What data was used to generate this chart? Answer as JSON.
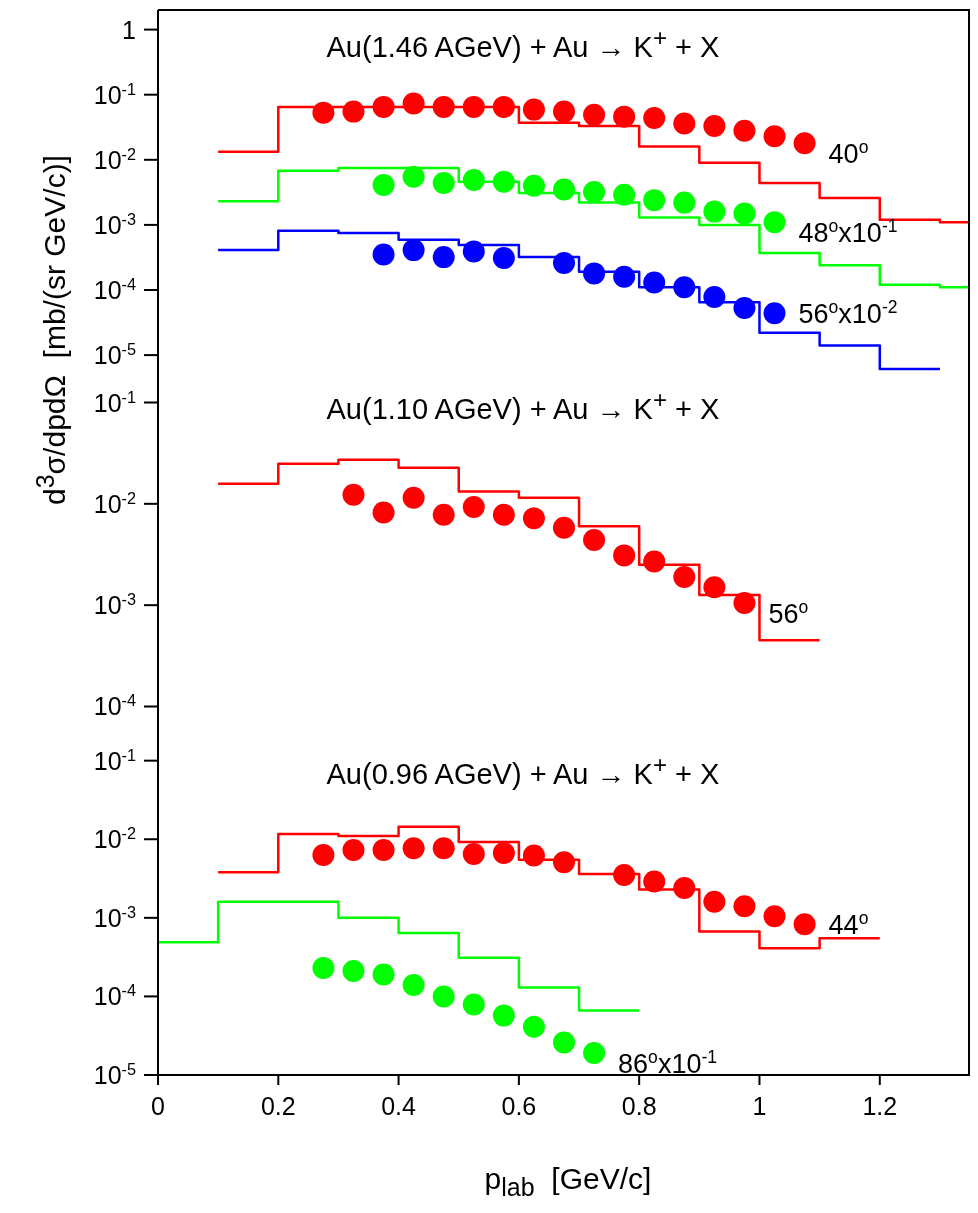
{
  "chart_data": [
    {
      "type": "scatter",
      "title": "Au(1.46 AGeV) + Au → K$^{+}$ + X",
      "ylabel": "d$^{3}$σ/dpdΩ  [mb/(sr GeV/c)]",
      "xlim": [
        0,
        1.35
      ],
      "xticks": [
        0,
        0.2,
        0.4,
        0.6,
        0.8,
        1,
        1.2
      ],
      "ylim": [
        5.5e-06,
        2
      ],
      "yticks": [
        1,
        {
          "value": 0.1,
          "label": "10$^{-1}$"
        },
        {
          "value": 0.01,
          "label": "10$^{-2}$"
        },
        {
          "value": 0.001,
          "label": "10$^{-3}$"
        },
        {
          "value": 0.0001,
          "label": "10$^{-4}$"
        },
        {
          "value": 1e-05,
          "label": "10$^{-5}$"
        }
      ],
      "log": "y",
      "tick_labels": "y",
      "series": [
        {
          "type": "step",
          "color": "#ff0000",
          "x": [
            0.1,
            0.2,
            0.3,
            0.4,
            0.5,
            0.6,
            0.7,
            0.8,
            0.9,
            1.0,
            1.1,
            1.2,
            1.3,
            1.35
          ],
          "values": [
            0.0133,
            0.065,
            0.065,
            0.065,
            0.065,
            0.037,
            0.033,
            0.016,
            0.009,
            0.0044,
            0.0026,
            0.0012,
            0.0011,
            0.0011
          ]
        },
        {
          "type": "step",
          "color": "#00ff00",
          "x": [
            0.1,
            0.2,
            0.3,
            0.4,
            0.5,
            0.6,
            0.7,
            0.8,
            0.9,
            1.0,
            1.1,
            1.2,
            1.3,
            1.35
          ],
          "values": [
            0.0023,
            0.0068,
            0.0075,
            0.0075,
            0.0046,
            0.0031,
            0.0022,
            0.0013,
            0.001,
            0.00037,
            0.00024,
            0.00012,
            0.00011,
            0.00011
          ]
        },
        {
          "type": "step",
          "color": "#0000ff",
          "x": [
            0.1,
            0.2,
            0.3,
            0.4,
            0.5,
            0.6,
            0.7,
            0.8,
            0.9,
            1.0,
            1.1,
            1.2,
            1.3
          ],
          "values": [
            0.00041,
            0.00081,
            0.00075,
            0.00059,
            0.00049,
            0.00032,
            0.00019,
            0.00011,
            6.5e-05,
            2.2e-05,
            1.4e-05,
            6.1e-06,
            6.1e-06
          ]
        },
        {
          "marker": "circle",
          "name": "40$^{o}$",
          "color": "#ff0000",
          "x": [
            0.275,
            0.325,
            0.375,
            0.425,
            0.475,
            0.525,
            0.575,
            0.625,
            0.675,
            0.725,
            0.775,
            0.825,
            0.875,
            0.925,
            0.975,
            1.025,
            1.075
          ],
          "values": [
            0.053,
            0.055,
            0.065,
            0.073,
            0.065,
            0.065,
            0.065,
            0.059,
            0.055,
            0.049,
            0.046,
            0.044,
            0.036,
            0.033,
            0.028,
            0.023,
            0.018
          ]
        },
        {
          "marker": "circle",
          "name": "48$^{o}$x10$^{-1}$",
          "color": "#00ff00",
          "x": [
            0.375,
            0.425,
            0.475,
            0.525,
            0.575,
            0.625,
            0.675,
            0.725,
            0.775,
            0.825,
            0.875,
            0.925,
            0.975,
            1.025
          ],
          "values": [
            0.0041,
            0.0055,
            0.0044,
            0.0049,
            0.0046,
            0.004,
            0.0035,
            0.0032,
            0.0029,
            0.0024,
            0.0022,
            0.0016,
            0.0015,
            0.0011
          ]
        },
        {
          "marker": "circle",
          "name": "56$^{o}$x10$^{-2}$",
          "color": "#0000ff",
          "x": [
            0.375,
            0.425,
            0.475,
            0.525,
            0.575,
            0.675,
            0.725,
            0.775,
            0.825,
            0.875,
            0.925,
            0.975,
            1.025
          ],
          "values": [
            0.00035,
            0.00041,
            0.00032,
            0.00039,
            0.00031,
            0.00026,
            0.00018,
            0.00016,
            0.00013,
            0.00011,
            7.8e-05,
            5.3e-05,
            4.4e-05
          ]
        }
      ]
    },
    {
      "type": "scatter",
      "title": "Au(1.10 AGeV) + Au → K$^{+}$ + X",
      "xlim": [
        0,
        1.35
      ],
      "xticks": [
        0,
        0.2,
        0.4,
        0.6,
        0.8,
        1,
        1.2
      ],
      "ylim": [
        5e-05,
        0.2
      ],
      "yticks": [
        {
          "value": 0.1,
          "label": "10$^{-1}$"
        },
        {
          "value": 0.01,
          "label": "10$^{-2}$"
        },
        {
          "value": 0.001,
          "label": "10$^{-3}$"
        },
        {
          "value": 0.0001,
          "label": "10$^{-4}$"
        }
      ],
      "log": "y",
      "tick_labels": "y",
      "series": [
        {
          "type": "step",
          "color": "#ff0000",
          "x": [
            0.1,
            0.2,
            0.3,
            0.4,
            0.5,
            0.6,
            0.7,
            0.8,
            0.9,
            1.0,
            1.1
          ],
          "values": [
            0.0158,
            0.0249,
            0.0273,
            0.0227,
            0.0132,
            0.0115,
            0.006,
            0.0025,
            0.00126,
            0.00045,
            0.00045
          ]
        },
        {
          "marker": "circle",
          "name": "56$^{o}$",
          "color": "#ff0000",
          "x": [
            0.325,
            0.375,
            0.425,
            0.475,
            0.525,
            0.575,
            0.625,
            0.675,
            0.725,
            0.775,
            0.825,
            0.875,
            0.925,
            0.975
          ],
          "values": [
            0.0123,
            0.0082,
            0.0115,
            0.0078,
            0.0093,
            0.0078,
            0.0072,
            0.0058,
            0.0044,
            0.0031,
            0.0027,
            0.0019,
            0.0015,
            0.00105
          ]
        }
      ]
    },
    {
      "type": "scatter",
      "title": "Au(0.96 AGeV) + Au → K$^{+}$ + X",
      "xlabel": "p$_{lab}$  [GeV/c]",
      "xlim": [
        0,
        1.35
      ],
      "xticks": [
        0,
        0.2,
        0.4,
        0.6,
        0.8,
        1,
        1.2
      ],
      "ylim": [
        1e-05,
        0.2
      ],
      "yticks": [
        {
          "value": 0.1,
          "label": "10$^{-1}$"
        },
        {
          "value": 0.01,
          "label": "10$^{-2}$"
        },
        {
          "value": 0.001,
          "label": "10$^{-3}$"
        },
        {
          "value": 0.0001,
          "label": "10$^{-4}$"
        },
        {
          "value": 1e-05,
          "label": "10$^{-5}$"
        }
      ],
      "log": "y",
      "series": [
        {
          "type": "step",
          "color": "#ff0000",
          "x": [
            0.1,
            0.2,
            0.3,
            0.4,
            0.5,
            0.6,
            0.7,
            0.8,
            0.9,
            1.0,
            1.1,
            1.2
          ],
          "values": [
            0.0038,
            0.0117,
            0.011,
            0.0144,
            0.0092,
            0.0055,
            0.0036,
            0.0023,
            0.00067,
            0.00041,
            0.00055,
            0.00055
          ]
        },
        {
          "type": "step",
          "color": "#00ff00",
          "x": [
            0,
            0.1,
            0.2,
            0.3,
            0.4,
            0.5,
            0.6,
            0.7,
            0.8
          ],
          "values": [
            0.00049,
            0.0016,
            0.0016,
            0.001,
            0.00064,
            0.00031,
            0.00013,
            6.6e-05,
            6.6e-05
          ]
        },
        {
          "marker": "circle",
          "name": "44$^{o}$",
          "color": "#ff0000",
          "x": [
            0.275,
            0.325,
            0.375,
            0.425,
            0.475,
            0.525,
            0.575,
            0.625,
            0.675,
            0.775,
            0.825,
            0.875,
            0.925,
            0.975,
            1.025,
            1.075
          ],
          "values": [
            0.0063,
            0.0073,
            0.0073,
            0.0077,
            0.0077,
            0.0065,
            0.0067,
            0.0062,
            0.0051,
            0.0035,
            0.0029,
            0.0024,
            0.0016,
            0.0014,
            0.00105,
            0.00083
          ]
        },
        {
          "marker": "circle",
          "name": "86$^{o}$x10$^{-1}$",
          "color": "#00ff00",
          "x": [
            0.275,
            0.325,
            0.375,
            0.425,
            0.475,
            0.525,
            0.575,
            0.625,
            0.675,
            0.725
          ],
          "values": [
            0.00023,
            0.00021,
            0.00019,
            0.00014,
            0.0001,
            7.9e-05,
            5.7e-05,
            4.1e-05,
            2.6e-05,
            1.9e-05
          ]
        }
      ]
    }
  ]
}
